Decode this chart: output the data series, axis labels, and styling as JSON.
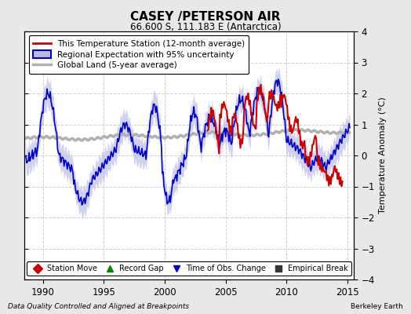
{
  "title": "CASEY /PETERSON AIR",
  "subtitle": "66.600 S, 111.183 E (Antarctica)",
  "ylabel": "Temperature Anomaly (°C)",
  "xlabel_left": "Data Quality Controlled and Aligned at Breakpoints",
  "xlabel_right": "Berkeley Earth",
  "ylim": [
    -4,
    4
  ],
  "xlim": [
    1988.5,
    2015.5
  ],
  "xticks": [
    1990,
    1995,
    2000,
    2005,
    2010,
    2015
  ],
  "yticks": [
    -4,
    -3,
    -2,
    -1,
    0,
    1,
    2,
    3,
    4
  ],
  "bg_color": "#e8e8e8",
  "plot_bg_color": "#ffffff",
  "grid_color": "#d0d0d0",
  "blue_line_color": "#0000cc",
  "blue_fill_color": "#b8b8e8",
  "red_line_color": "#cc0000",
  "gray_line_color": "#b0b0b0",
  "legend_entries": [
    "This Temperature Station (12-month average)",
    "Regional Expectation with 95% uncertainty",
    "Global Land (5-year average)"
  ],
  "marker_legend": [
    {
      "marker": "D",
      "color": "#cc0000",
      "label": "Station Move"
    },
    {
      "marker": "^",
      "color": "#008800",
      "label": "Record Gap"
    },
    {
      "marker": "v",
      "color": "#0000cc",
      "label": "Time of Obs. Change"
    },
    {
      "marker": "s",
      "color": "#333333",
      "label": "Empirical Break"
    }
  ]
}
